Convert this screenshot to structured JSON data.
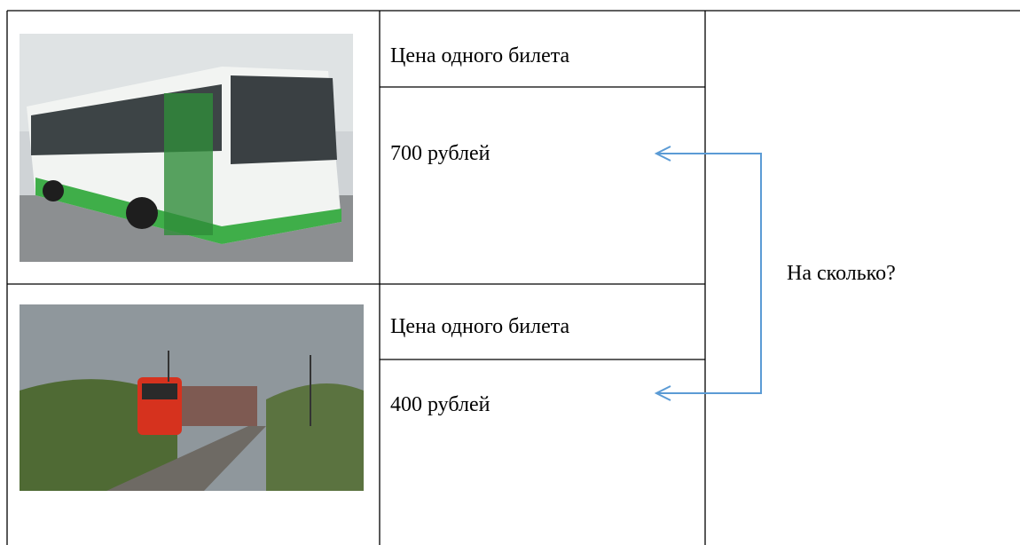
{
  "rows": [
    {
      "header": "Цена одного билета",
      "price": "700 рублей"
    },
    {
      "header": "Цена одного билета",
      "price": "400 рублей"
    }
  ],
  "question": "На сколько?"
}
